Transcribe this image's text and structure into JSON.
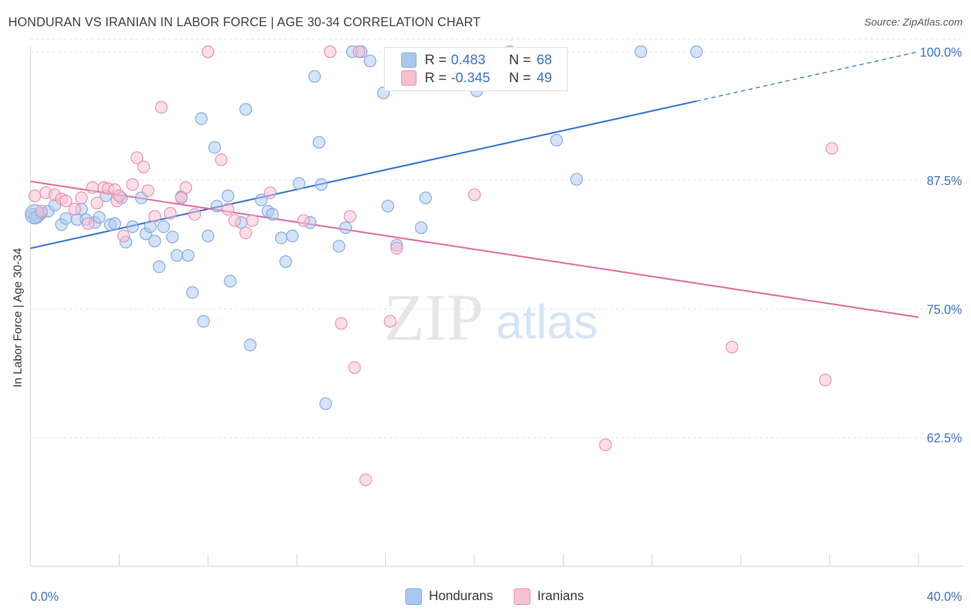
{
  "title": "HONDURAN VS IRANIAN IN LABOR FORCE | AGE 30-34 CORRELATION CHART",
  "source": "Source: ZipAtlas.com",
  "watermark": {
    "zip": "ZIP",
    "atlas": "atlas"
  },
  "legend_top": {
    "rows": [
      {
        "r_label": "R =",
        "r_value": "0.483",
        "n_label": "N =",
        "n_value": "68",
        "color": "#a9c8f0",
        "border": "#7aa6e0"
      },
      {
        "r_label": "R =",
        "r_value": "-0.345",
        "n_label": "N =",
        "n_value": "49",
        "color": "#f8c0d2",
        "border": "#e98aaa"
      }
    ]
  },
  "bottom_legend": [
    {
      "label": "Hondurans",
      "color": "#a9c8f0",
      "border": "#7aa6e0"
    },
    {
      "label": "Iranians",
      "color": "#f8c0d2",
      "border": "#e98aaa"
    }
  ],
  "chart_data": {
    "type": "scatter",
    "title": "HONDURAN VS IRANIAN IN LABOR FORCE | AGE 30-34 CORRELATION CHART",
    "xlabel": "",
    "ylabel": "In Labor Force | Age 30-34",
    "xlim": [
      0,
      40
    ],
    "ylim": [
      50,
      101
    ],
    "x_tick_labels": [
      {
        "value": 0,
        "label": "0.0%"
      },
      {
        "value": 40,
        "label": "40.0%"
      }
    ],
    "y_ticks": [
      {
        "value": 62.5,
        "label": "62.5%"
      },
      {
        "value": 75.0,
        "label": "75.0%"
      },
      {
        "value": 87.5,
        "label": "87.5%"
      },
      {
        "value": 100.0,
        "label": "100.0%"
      }
    ],
    "grid": true,
    "legend_position": "top-center",
    "series": [
      {
        "name": "Hondurans",
        "color": "#7aa6e0",
        "fill": "#a9c8f0",
        "trend": {
          "x0": 0,
          "y0": 80.9,
          "x1": 30,
          "y1": 95.2,
          "dashed_to_x": 40,
          "dashed_to_y": 100.0
        },
        "points": [
          [
            0.1,
            84.2
          ],
          [
            0.3,
            84.0
          ],
          [
            0.5,
            84.3
          ],
          [
            0.8,
            84.5
          ],
          [
            1.1,
            85.1
          ],
          [
            1.4,
            83.2
          ],
          [
            1.6,
            83.8
          ],
          [
            2.1,
            83.7
          ],
          [
            2.3,
            84.7
          ],
          [
            2.5,
            83.7
          ],
          [
            2.9,
            83.4
          ],
          [
            3.1,
            83.9
          ],
          [
            3.4,
            86.0
          ],
          [
            3.6,
            83.2
          ],
          [
            3.8,
            83.3
          ],
          [
            4.1,
            85.8
          ],
          [
            4.3,
            81.5
          ],
          [
            4.6,
            83.0
          ],
          [
            5.0,
            85.8
          ],
          [
            5.2,
            82.3
          ],
          [
            5.4,
            83.0
          ],
          [
            5.6,
            81.6
          ],
          [
            5.8,
            79.1
          ],
          [
            6.0,
            83.0
          ],
          [
            6.4,
            82.0
          ],
          [
            6.6,
            80.2
          ],
          [
            6.8,
            85.9
          ],
          [
            7.1,
            80.2
          ],
          [
            7.3,
            76.6
          ],
          [
            7.7,
            93.5
          ],
          [
            7.8,
            73.8
          ],
          [
            8.0,
            82.1
          ],
          [
            8.3,
            90.7
          ],
          [
            8.4,
            85.0
          ],
          [
            8.9,
            86.0
          ],
          [
            9.0,
            77.7
          ],
          [
            9.5,
            83.4
          ],
          [
            9.7,
            94.4
          ],
          [
            9.9,
            71.5
          ],
          [
            10.4,
            85.6
          ],
          [
            10.7,
            84.5
          ],
          [
            10.9,
            84.2
          ],
          [
            11.3,
            81.9
          ],
          [
            11.5,
            79.6
          ],
          [
            11.8,
            82.1
          ],
          [
            12.1,
            87.2
          ],
          [
            12.6,
            83.4
          ],
          [
            12.8,
            97.6
          ],
          [
            13.0,
            91.2
          ],
          [
            13.1,
            87.1
          ],
          [
            13.3,
            65.8
          ],
          [
            13.9,
            81.1
          ],
          [
            14.2,
            82.9
          ],
          [
            14.5,
            100.0
          ],
          [
            14.9,
            100.0
          ],
          [
            15.3,
            99.1
          ],
          [
            15.9,
            96.0
          ],
          [
            16.1,
            85.0
          ],
          [
            16.5,
            81.2
          ],
          [
            17.6,
            82.9
          ],
          [
            17.8,
            85.8
          ],
          [
            20.1,
            96.2
          ],
          [
            20.4,
            98.5
          ],
          [
            23.7,
            91.4
          ],
          [
            24.6,
            87.6
          ],
          [
            27.5,
            100.0
          ],
          [
            30.0,
            100.0
          ],
          [
            0.2,
            83.9
          ]
        ],
        "big_points": [
          [
            0.2,
            84.2
          ]
        ]
      },
      {
        "name": "Iranians",
        "color": "#e98aaa",
        "fill": "#f8c0d2",
        "trend": {
          "x0": 0,
          "y0": 87.4,
          "x1": 40,
          "y1": 74.2
        },
        "points": [
          [
            0.2,
            86.0
          ],
          [
            0.5,
            84.5
          ],
          [
            0.7,
            86.3
          ],
          [
            1.1,
            86.1
          ],
          [
            1.4,
            85.7
          ],
          [
            1.6,
            85.5
          ],
          [
            2.0,
            84.7
          ],
          [
            2.3,
            85.8
          ],
          [
            2.6,
            83.3
          ],
          [
            2.8,
            86.8
          ],
          [
            3.0,
            85.3
          ],
          [
            3.3,
            86.8
          ],
          [
            3.5,
            86.7
          ],
          [
            3.8,
            86.6
          ],
          [
            3.9,
            85.5
          ],
          [
            4.0,
            86.0
          ],
          [
            4.2,
            82.1
          ],
          [
            4.6,
            87.1
          ],
          [
            4.8,
            89.7
          ],
          [
            5.1,
            88.8
          ],
          [
            5.3,
            86.5
          ],
          [
            5.6,
            84.0
          ],
          [
            5.9,
            94.6
          ],
          [
            6.3,
            84.3
          ],
          [
            6.8,
            85.8
          ],
          [
            7.0,
            86.8
          ],
          [
            7.4,
            84.2
          ],
          [
            8.0,
            100.0
          ],
          [
            8.6,
            89.5
          ],
          [
            8.9,
            84.7
          ],
          [
            9.2,
            83.6
          ],
          [
            9.7,
            82.4
          ],
          [
            10.0,
            83.6
          ],
          [
            10.8,
            86.3
          ],
          [
            12.3,
            83.6
          ],
          [
            13.5,
            100.0
          ],
          [
            14.0,
            73.6
          ],
          [
            14.4,
            84.0
          ],
          [
            14.6,
            69.3
          ],
          [
            14.8,
            100.0
          ],
          [
            15.1,
            58.4
          ],
          [
            16.2,
            73.8
          ],
          [
            16.5,
            80.9
          ],
          [
            20.0,
            86.1
          ],
          [
            21.6,
            100.0
          ],
          [
            25.9,
            61.8
          ],
          [
            31.6,
            71.3
          ],
          [
            35.8,
            68.1
          ],
          [
            36.1,
            90.6
          ]
        ],
        "big_points": []
      }
    ]
  }
}
